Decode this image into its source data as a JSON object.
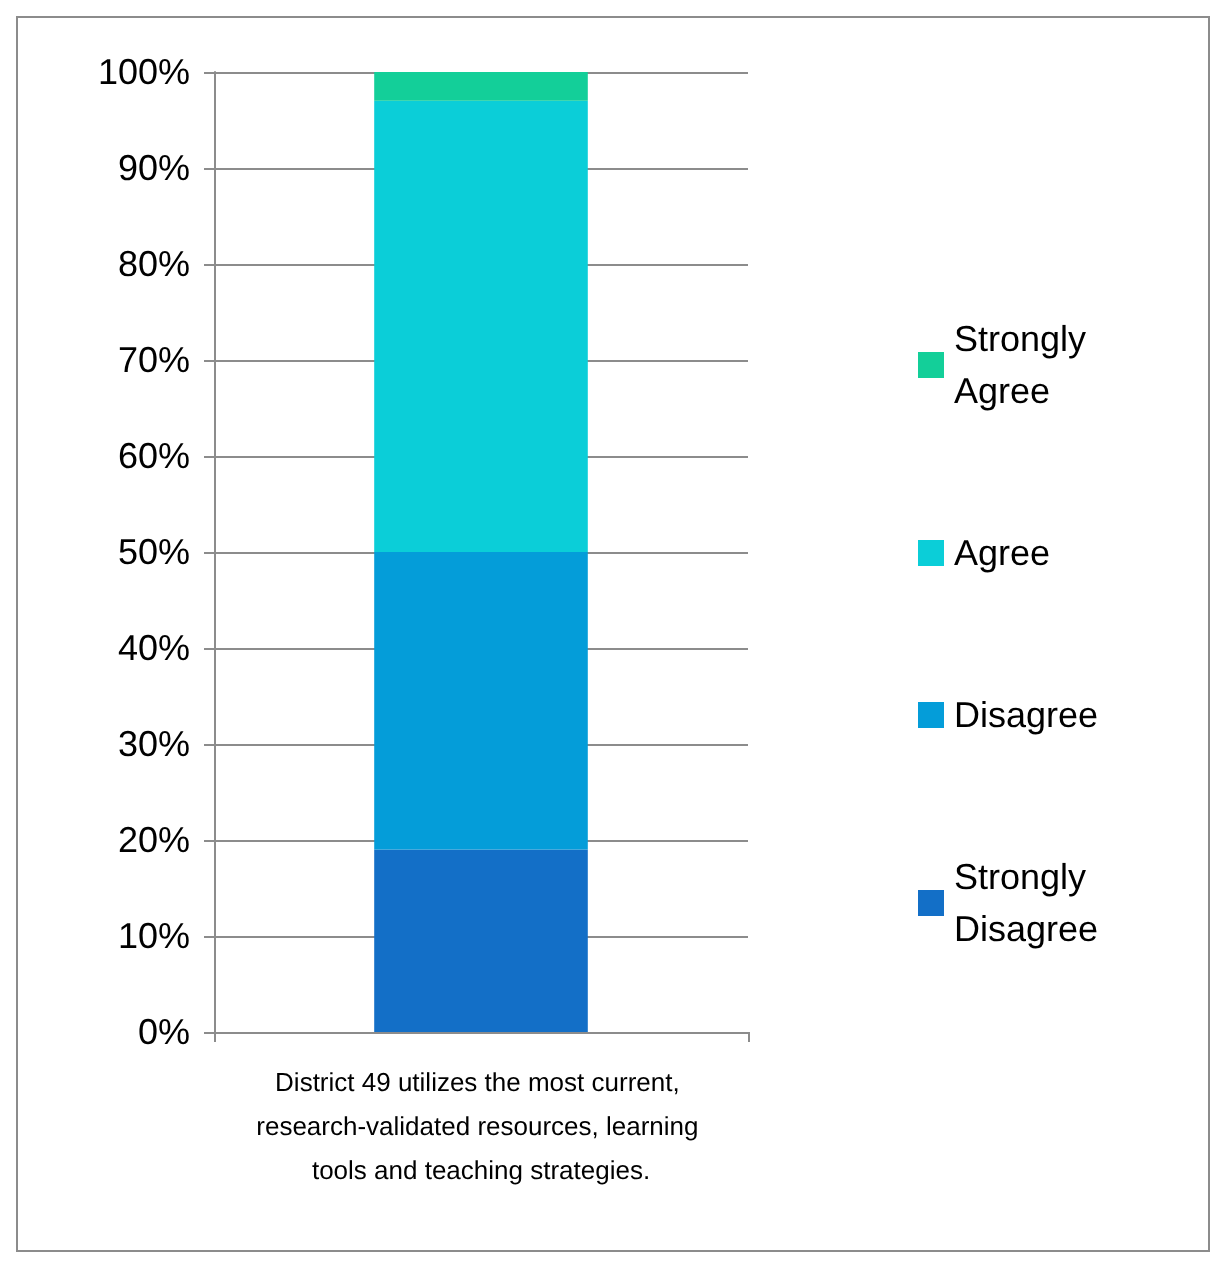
{
  "chart_data": {
    "type": "bar",
    "stacked": true,
    "categories": [
      "District 49 utilizes the most current, research-validated resources, learning tools and teaching strategies."
    ],
    "series": [
      {
        "name": "Strongly Disagree",
        "color": "#136fc7",
        "values": [
          19
        ]
      },
      {
        "name": "Disagree",
        "color": "#049dd9",
        "values": [
          31
        ]
      },
      {
        "name": "Agree",
        "color": "#0bced8",
        "values": [
          47
        ]
      },
      {
        "name": "Strongly Agree",
        "color": "#13cf99",
        "values": [
          3
        ]
      }
    ],
    "ylim": [
      0,
      100
    ],
    "yticks": [
      {
        "value": 0,
        "label": "0%"
      },
      {
        "value": 10,
        "label": "10%"
      },
      {
        "value": 20,
        "label": "20%"
      },
      {
        "value": 30,
        "label": "30%"
      },
      {
        "value": 40,
        "label": "40%"
      },
      {
        "value": 50,
        "label": "50%"
      },
      {
        "value": 60,
        "label": "60%"
      },
      {
        "value": 70,
        "label": "70%"
      },
      {
        "value": 80,
        "label": "80%"
      },
      {
        "value": 90,
        "label": "90%"
      },
      {
        "value": 100,
        "label": "100%"
      }
    ],
    "grid": "y",
    "legend": "right"
  }
}
